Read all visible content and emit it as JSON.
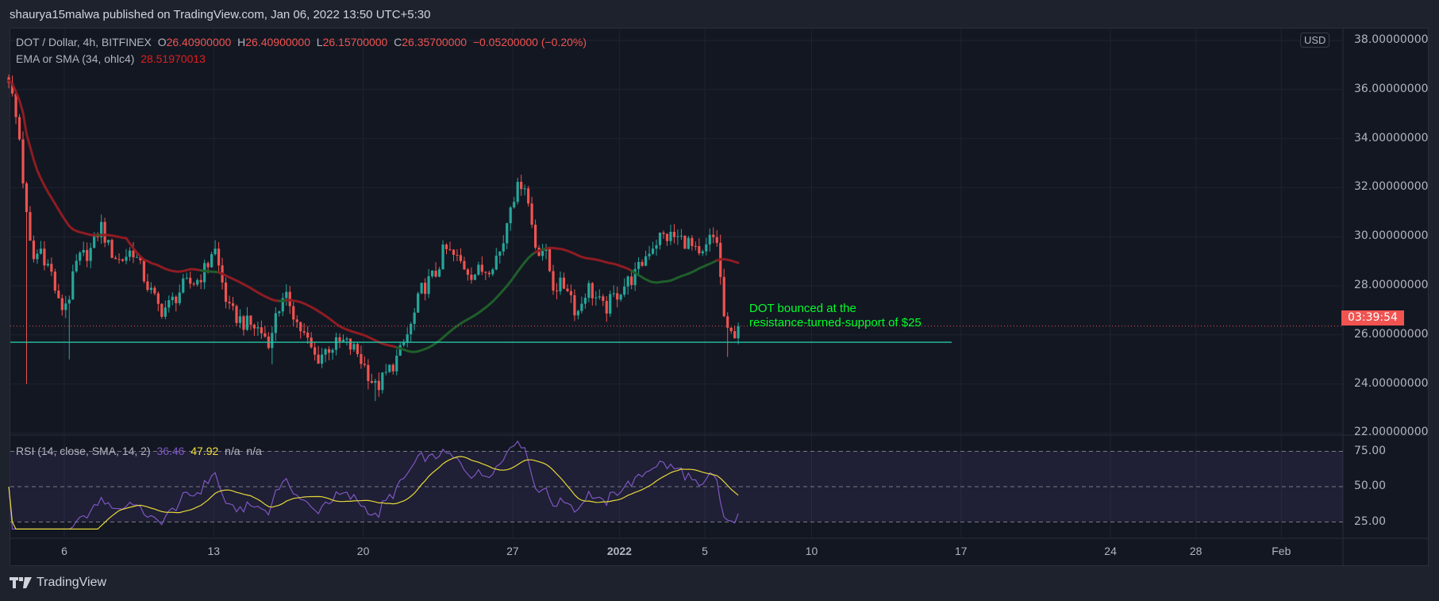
{
  "header": {
    "published": "shaurya15malwa published on TradingView.com, Jan 06, 2022 13:50 UTC+5:30"
  },
  "legend": {
    "symbol": "DOT / Dollar, 4h, BITFINEX",
    "o_label": "O",
    "o": "26.40900000",
    "h_label": "H",
    "h": "26.40900000",
    "l_label": "L",
    "l": "26.15700000",
    "c_label": "C",
    "c": "26.35700000",
    "change": "−0.05200000 (−0.20%)",
    "ma_label": "EMA or SMA (34, ohlc4)",
    "ma_value": "28.51970013"
  },
  "rsi_legend": {
    "label": "RSI (14, close, SMA, 14, 2)",
    "rsi": "36.46",
    "sma": "47.92",
    "na1": "n/a",
    "na2": "n/a"
  },
  "price_axis": {
    "currency": "USD",
    "ticks": [
      "38.00000000",
      "36.00000000",
      "34.00000000",
      "32.00000000",
      "30.00000000",
      "28.00000000",
      "26.00000000",
      "24.00000000",
      "22.00000000"
    ],
    "countdown": "03:39:54"
  },
  "rsi_axis": {
    "ticks": [
      "75.00",
      "50.00",
      "25.00"
    ]
  },
  "time_axis": {
    "ticks": [
      {
        "label": "6",
        "day": 6
      },
      {
        "label": "13",
        "day": 13
      },
      {
        "label": "20",
        "day": 20
      },
      {
        "label": "27",
        "day": 27
      },
      {
        "label": "2022",
        "day": 32
      },
      {
        "label": "5",
        "day": 36
      },
      {
        "label": "10",
        "day": 41
      },
      {
        "label": "17",
        "day": 48
      },
      {
        "label": "24",
        "day": 55
      },
      {
        "label": "28",
        "day": 59
      },
      {
        "label": "Feb",
        "day": 63
      }
    ]
  },
  "annotation": {
    "line1": "DOT bounced at the",
    "line2": "resistance-turned-support of $25",
    "color": "#00ff2a"
  },
  "footer": {
    "brand": "TradingView"
  },
  "colors": {
    "up": "#26a69a",
    "down": "#ef5350",
    "ma_down": "#8e1c22",
    "ma_up": "#1f5e2a",
    "rsi": "#7e57c2",
    "rsi_sma": "#e6d83a",
    "support": "#26c6a6"
  },
  "chart_data": {
    "type": "candlestick",
    "title": "DOT / Dollar, 4h, BITFINEX",
    "x_unit": "day (December 2021 day numbering; 32 = Jan 1 2022)",
    "ylim": [
      22,
      38
    ],
    "rsi_lim": [
      25,
      75
    ],
    "support_level": 25.7,
    "last_price": 26.357,
    "close_path": [
      [
        3.4,
        36.5
      ],
      [
        3.6,
        35.5
      ],
      [
        3.9,
        34
      ],
      [
        4.2,
        31
      ],
      [
        4.5,
        29
      ],
      [
        4.9,
        29.5
      ],
      [
        5.4,
        28.5
      ],
      [
        5.8,
        27
      ],
      [
        6.2,
        27.5
      ],
      [
        6.6,
        29
      ],
      [
        7.3,
        29.5
      ],
      [
        7.7,
        30.5
      ],
      [
        8.1,
        29.5
      ],
      [
        8.6,
        29
      ],
      [
        9.2,
        29.5
      ],
      [
        9.9,
        28
      ],
      [
        10.5,
        27
      ],
      [
        10.9,
        27.2
      ],
      [
        11.6,
        28
      ],
      [
        12.2,
        28.2
      ],
      [
        12.7,
        28.8
      ],
      [
        13,
        29.7
      ],
      [
        13.3,
        28.5
      ],
      [
        13.7,
        27
      ],
      [
        14.4,
        26.5
      ],
      [
        15,
        26.3
      ],
      [
        15.7,
        25.7
      ],
      [
        15.9,
        27
      ],
      [
        16.5,
        27.5
      ],
      [
        16.9,
        26.5
      ],
      [
        17.4,
        25.7
      ],
      [
        17.8,
        25
      ],
      [
        18.4,
        25.5
      ],
      [
        19.1,
        25.7
      ],
      [
        19.7,
        25.3
      ],
      [
        20.2,
        24.5
      ],
      [
        20.6,
        23.8
      ],
      [
        21,
        24.3
      ],
      [
        21.7,
        25.2
      ],
      [
        22.3,
        26.5
      ],
      [
        22.7,
        27.8
      ],
      [
        23.4,
        28.5
      ],
      [
        23.8,
        29.5
      ],
      [
        24.5,
        29
      ],
      [
        25.1,
        28.5
      ],
      [
        25.8,
        28.7
      ],
      [
        26.5,
        29.5
      ],
      [
        26.9,
        31.5
      ],
      [
        27.3,
        32
      ],
      [
        27.5,
        32.5
      ],
      [
        27.8,
        31
      ],
      [
        28.1,
        29.5
      ],
      [
        28.5,
        29.5
      ],
      [
        28.9,
        28
      ],
      [
        29.6,
        28
      ],
      [
        30,
        26.8
      ],
      [
        30.5,
        28
      ],
      [
        30.9,
        27.5
      ],
      [
        31.3,
        27
      ],
      [
        31.7,
        27.5
      ],
      [
        32.2,
        28
      ],
      [
        32.8,
        28.5
      ],
      [
        33.4,
        29.5
      ],
      [
        33.9,
        30
      ],
      [
        34.5,
        30
      ],
      [
        35.2,
        29.8
      ],
      [
        35.8,
        29
      ],
      [
        36.3,
        30
      ],
      [
        36.6,
        29.8
      ],
      [
        36.8,
        27.5
      ],
      [
        37,
        26
      ],
      [
        37.3,
        26
      ],
      [
        37.56,
        26.36
      ]
    ],
    "notable_lows": [
      [
        4.3,
        24
      ],
      [
        6.3,
        25
      ],
      [
        37.1,
        25.1
      ],
      [
        15.7,
        24.8
      ],
      [
        20.6,
        23.3
      ]
    ],
    "indicators": [
      "EMA or SMA (34, ohlc4)",
      "RSI (14, close, SMA, 14, 2)"
    ]
  }
}
